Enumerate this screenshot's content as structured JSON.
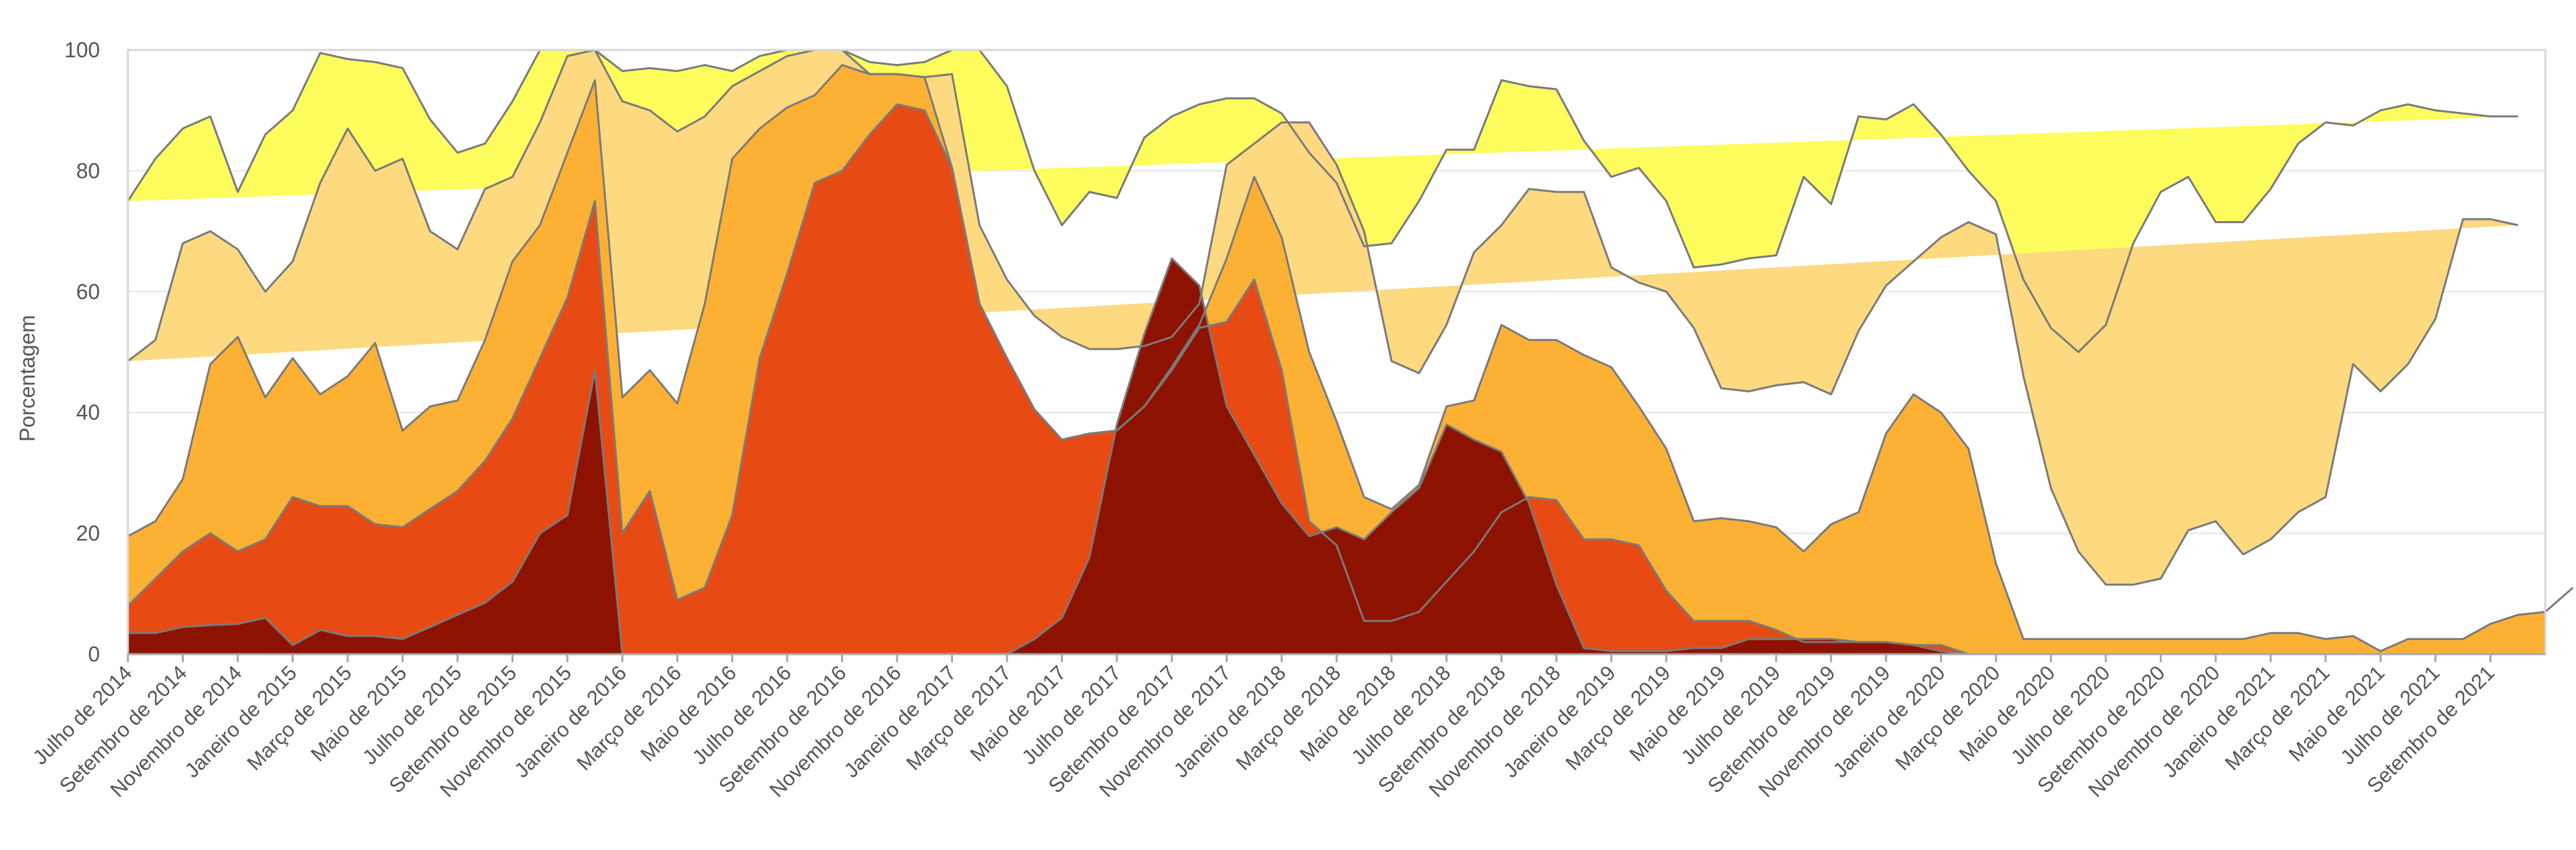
{
  "chart_data": {
    "type": "area",
    "stacked": true,
    "ylabel": "Porcentagem",
    "xlabel": "",
    "ylim": [
      0,
      100
    ],
    "yticks": [
      0,
      20,
      40,
      60,
      80,
      100
    ],
    "grid": true,
    "legend": "none",
    "colors": [
      "#8e1200",
      "#e84a14",
      "#fcb134",
      "#fdd980",
      "#fdfd5e"
    ],
    "x_tick_labels": [
      "Julho de 2014",
      "Setembro de 2014",
      "Novembro de 2014",
      "Janeiro de 2015",
      "Março de 2015",
      "Maio de 2015",
      "Julho de 2015",
      "Setembro de 2015",
      "Novembro de 2015",
      "Janeiro de 2016",
      "Março de 2016",
      "Maio de 2016",
      "Julho de 2016",
      "Setembro de 2016",
      "Novembro de 2016",
      "Janeiro de 2017",
      "Março de 2017",
      "Maio de 2017",
      "Julho de 2017",
      "Setembro de 2017",
      "Novembro de 2017",
      "Janeiro de 2018",
      "Março de 2018",
      "Maio de 2018",
      "Julho de 2018",
      "Setembro de 2018",
      "Novembro de 2018",
      "Janeiro de 2019",
      "Março de 2019",
      "Maio de 2019",
      "Julho de 2019",
      "Setembro de 2019",
      "Novembro de 2019",
      "Janeiro de 2020",
      "Março de 2020",
      "Maio de 2020",
      "Julho de 2020",
      "Setembro de 2020",
      "Novembro de 2020",
      "Janeiro de 2021",
      "Março de 2021",
      "Maio de 2021",
      "Julho de 2021",
      "Setembro de 2021"
    ],
    "x_tick_every": 2,
    "cumulative_series": [
      {
        "name": "",
        "values": [
          3.5,
          3.5,
          4.5,
          4.8,
          5,
          6,
          1.5,
          4,
          3,
          3,
          2.5,
          4.5,
          6.5,
          8.5,
          12,
          20,
          23,
          47,
          0,
          0,
          0,
          0,
          0,
          0,
          0,
          0,
          0,
          0,
          0,
          0,
          0,
          0,
          0,
          2.5,
          6,
          16,
          38,
          53,
          65.5,
          61,
          41,
          33,
          25,
          19.5,
          21,
          19,
          23.5,
          27.5,
          38,
          35.5,
          33.5,
          25,
          11.5,
          1,
          0.5,
          0.5,
          0.5,
          1,
          1,
          2.5,
          2.5,
          2.5,
          2.5,
          2,
          2,
          1.5,
          0.5,
          0,
          0,
          0,
          0,
          0,
          0,
          0,
          0,
          0,
          0,
          0,
          0,
          0,
          0,
          0,
          0,
          0,
          0,
          0,
          0,
          0,
          0
        ]
      },
      {
        "name": "",
        "values": [
          8,
          12.5,
          17,
          20,
          17,
          19,
          26,
          24.5,
          24.5,
          21.5,
          21,
          24,
          27,
          32,
          39,
          49,
          59,
          75,
          20,
          27,
          9,
          11,
          23,
          49,
          63,
          78,
          80,
          86,
          91,
          90,
          80.5,
          58,
          49,
          40.5,
          35.5,
          36.5,
          37,
          41,
          47,
          54,
          55,
          62,
          47,
          22,
          18,
          5.5,
          5.5,
          7,
          12,
          17,
          23.5,
          26,
          25.5,
          19,
          19,
          18,
          10.5,
          5.5,
          5.5,
          5.5,
          4,
          2,
          2,
          2,
          2,
          1.5,
          1.5,
          0,
          0,
          0,
          0,
          0,
          0,
          0,
          0,
          0,
          0,
          0,
          0,
          0,
          0,
          0,
          0,
          0,
          0,
          0,
          0,
          0,
          0
        ]
      },
      {
        "name": "",
        "values": [
          19.5,
          22,
          29,
          48,
          52.5,
          42.5,
          49,
          43,
          46,
          51.5,
          37,
          41,
          42,
          52,
          65,
          71,
          83,
          95,
          42.5,
          47,
          41.5,
          58,
          82,
          87,
          90.5,
          92.5,
          97.5,
          96,
          96,
          95.5,
          80.5,
          58,
          49,
          40.5,
          35.5,
          36.5,
          37,
          41,
          47.5,
          54.5,
          65.5,
          79,
          69,
          50,
          38.5,
          26,
          24,
          28,
          41,
          42,
          54.5,
          52,
          52,
          49.5,
          47.5,
          41,
          34,
          22,
          22.5,
          22,
          21,
          17,
          21.5,
          23.5,
          36.5,
          43,
          40,
          34,
          15,
          2.5,
          2.5,
          2.5,
          2.5,
          2.5,
          2.5,
          2.5,
          2.5,
          2.5,
          3.5,
          3.5,
          2.5,
          3,
          0.5,
          2.5,
          2.5,
          2.5,
          5,
          6.5,
          7,
          11
        ]
      },
      {
        "name": "",
        "values": [
          48.5,
          52,
          68,
          70,
          67,
          60,
          65,
          78,
          87,
          80,
          82,
          70,
          67,
          77,
          79,
          88,
          99,
          100,
          91.5,
          90,
          86.5,
          89,
          94,
          96.5,
          99,
          100,
          100,
          96,
          96,
          95.5,
          96,
          71,
          62,
          56,
          52.5,
          50.5,
          50.5,
          51,
          52.5,
          58,
          81,
          84.5,
          88,
          88,
          81,
          70,
          48.5,
          46.5,
          54.5,
          66.5,
          71,
          77,
          76.5,
          76.5,
          64,
          61.5,
          60,
          54,
          44,
          43.5,
          44.5,
          45,
          43,
          53.5,
          61,
          65,
          69,
          71.5,
          69.5,
          46,
          27.5,
          17,
          11.5,
          11.5,
          12.5,
          20.5,
          22,
          16.5,
          19,
          23.5,
          26,
          48,
          43.5,
          48,
          55.5,
          72,
          72,
          71
        ]
      },
      {
        "name": "",
        "values": [
          75,
          82,
          87,
          89,
          76.5,
          86,
          90,
          99.5,
          98.5,
          98,
          97,
          88.5,
          83,
          84.5,
          91.5,
          100,
          100,
          100,
          96.5,
          97,
          96.5,
          97.5,
          96.5,
          99,
          100,
          100,
          100,
          98,
          97.5,
          98,
          100,
          100,
          94,
          80,
          71,
          76.5,
          75.5,
          85.5,
          89,
          91,
          92,
          92,
          89.5,
          83,
          78,
          67.5,
          68,
          75,
          83.5,
          83.5,
          95,
          94,
          93.5,
          85,
          79,
          80.5,
          75,
          64,
          64.5,
          65.5,
          66,
          79,
          74.5,
          89,
          88.5,
          91,
          86,
          80,
          75,
          62,
          54,
          50,
          54.5,
          68,
          76.5,
          79,
          71.5,
          71.5,
          77,
          84.5,
          88,
          87.5,
          90,
          91,
          90,
          89.5,
          89,
          89
        ]
      }
    ]
  }
}
